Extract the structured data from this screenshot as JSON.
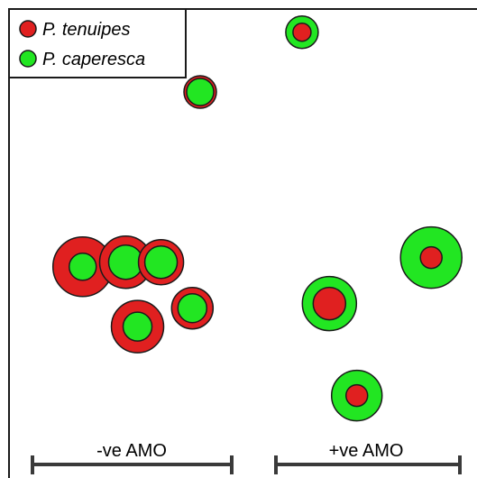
{
  "chart_data": {
    "type": "scatter",
    "title": "",
    "xlabel": "",
    "ylabel": "",
    "colors": {
      "outer_ring_red": "#e02020",
      "green": "#22e622",
      "stroke": "#1a1a1a",
      "axis": "#3a3a3a"
    },
    "legend": {
      "placement": "top-left",
      "entries": [
        {
          "label": "P. tenuipes",
          "color": "#e02020"
        },
        {
          "label": "P. caperesca",
          "color": "#22e622"
        }
      ]
    },
    "groups": [
      {
        "label": "-ve AMO",
        "x_range": [
          0.0,
          0.5
        ]
      },
      {
        "label": "+ve AMO",
        "x_range": [
          0.55,
          1.0
        ]
      }
    ],
    "x_range": [
      -0.05,
      1.0
    ],
    "y_range": [
      0.0,
      1.0
    ],
    "points": [
      {
        "x": 0.0,
        "y": 0.42,
        "outer": "P. tenuipes",
        "outer_size": 33,
        "inner_size": 15
      },
      {
        "x": 0.11,
        "y": 0.43,
        "outer": "P. tenuipes",
        "outer_size": 29,
        "inner_size": 19
      },
      {
        "x": 0.2,
        "y": 0.43,
        "outer": "P. tenuipes",
        "outer_size": 25,
        "inner_size": 18
      },
      {
        "x": 0.14,
        "y": 0.29,
        "outer": "P. tenuipes",
        "outer_size": 29,
        "inner_size": 16
      },
      {
        "x": 0.28,
        "y": 0.33,
        "outer": "P. tenuipes",
        "outer_size": 23,
        "inner_size": 16
      },
      {
        "x": 0.3,
        "y": 0.8,
        "outer": "P. tenuipes",
        "outer_size": 18,
        "inner_size": 15
      },
      {
        "x": 0.56,
        "y": 0.93,
        "outer": "P. caperesca",
        "outer_size": 18,
        "inner_size": 10
      },
      {
        "x": 0.89,
        "y": 0.44,
        "outer": "P. caperesca",
        "outer_size": 34,
        "inner_size": 12
      },
      {
        "x": 0.63,
        "y": 0.34,
        "outer": "P. caperesca",
        "outer_size": 30,
        "inner_size": 18
      },
      {
        "x": 0.7,
        "y": 0.14,
        "outer": "P. caperesca",
        "outer_size": 28,
        "inner_size": 12
      }
    ]
  }
}
